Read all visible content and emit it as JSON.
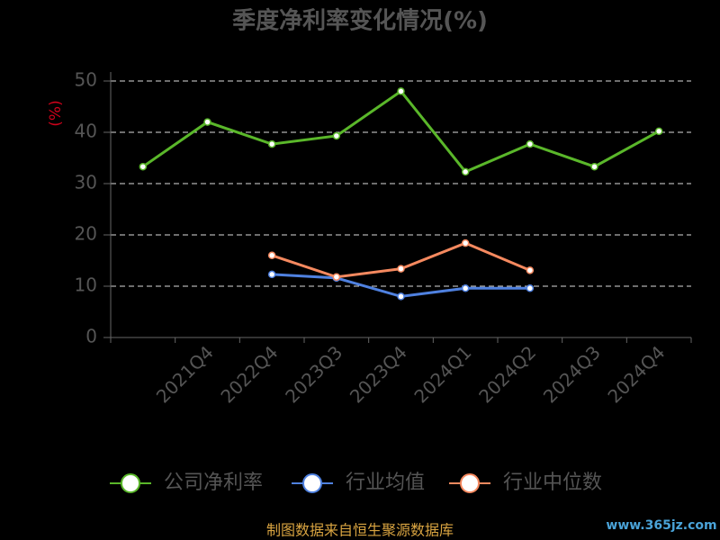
{
  "chart_data": {
    "type": "line",
    "title": "季度净利率变化情况(%)",
    "y_label": "(%)",
    "categories": [
      null,
      "2021Q4",
      "2022Q4",
      "2023Q3",
      "2023Q4",
      "2024Q1",
      "2024Q2",
      "2024Q3",
      "2024Q4"
    ],
    "series": [
      {
        "name": "公司净利率",
        "color": "#5ab72a",
        "values": [
          33.3,
          42,
          37.7,
          39.3,
          48,
          32.3,
          37.7,
          33.3,
          40.2
        ]
      },
      {
        "name": "行业均值",
        "color": "#4f81e0",
        "values": [
          null,
          null,
          12.3,
          11.6,
          8,
          9.6,
          9.6,
          null,
          null
        ]
      },
      {
        "name": "行业中位数",
        "color": "#f5895f",
        "values": [
          null,
          null,
          16,
          11.8,
          13.4,
          18.4,
          13.1,
          null,
          null
        ]
      }
    ],
    "ylim": [
      0,
      50
    ],
    "yticks": [
      0,
      10,
      20,
      30,
      40,
      50
    ],
    "grid": true,
    "source": "制图数据来自恒生聚源数据库",
    "watermark": "www.365jz.com"
  }
}
